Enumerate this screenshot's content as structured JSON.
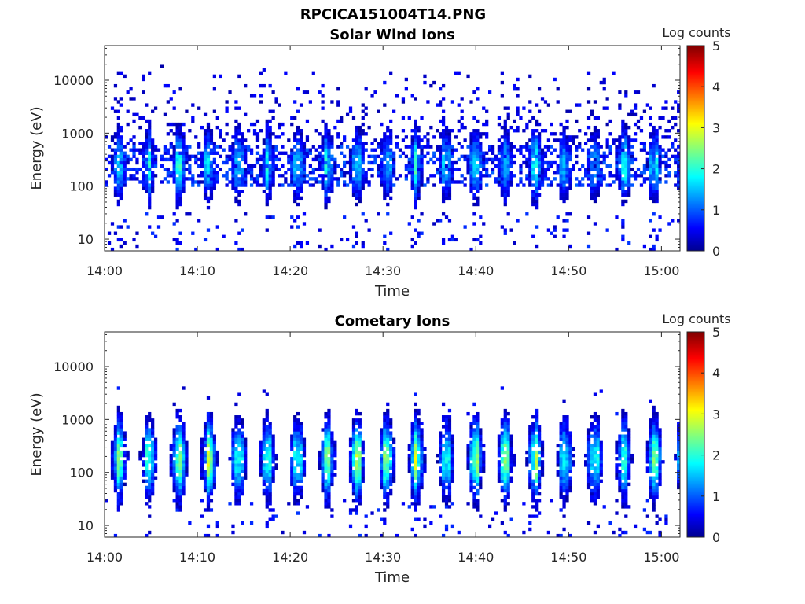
{
  "figure_title": "RPCICA151004T14.PNG",
  "chart_data": [
    {
      "type": "heatmap",
      "title": "Solar Wind Ions",
      "xlabel": "Time",
      "ylabel": "Energy (eV)",
      "x_range": [
        "14:00",
        "15:02"
      ],
      "x_ticks": [
        "14:00",
        "14:10",
        "14:20",
        "14:30",
        "14:40",
        "14:50",
        "15:00"
      ],
      "y_scale": "log",
      "y_range": [
        6,
        45000
      ],
      "y_ticks": [
        10,
        100,
        1000,
        10000
      ],
      "y_tick_labels": [
        "10",
        "100",
        "1000",
        "10000"
      ],
      "colorbar": {
        "label": "Log counts",
        "range": [
          0,
          5
        ],
        "ticks": [
          "0",
          "1",
          "2",
          "3",
          "4",
          "5"
        ],
        "colormap": "jet"
      },
      "band": {
        "center_ev": 250,
        "log_width": 0.45,
        "peak_log_counts": 1.9
      },
      "background_level": 0.8,
      "high_energy_noise": true,
      "pulse_period_min": 3.2
    },
    {
      "type": "heatmap",
      "title": "Cometary Ions",
      "xlabel": "Time",
      "ylabel": "Energy (eV)",
      "x_range": [
        "14:00",
        "15:02"
      ],
      "x_ticks": [
        "14:00",
        "14:10",
        "14:20",
        "14:30",
        "14:40",
        "14:50",
        "15:00"
      ],
      "y_scale": "log",
      "y_range": [
        6,
        45000
      ],
      "y_ticks": [
        10,
        100,
        1000,
        10000
      ],
      "y_tick_labels": [
        "10",
        "100",
        "1000",
        "10000"
      ],
      "colorbar": {
        "label": "Log counts",
        "range": [
          0,
          5
        ],
        "ticks": [
          "0",
          "1",
          "2",
          "3",
          "4",
          "5"
        ],
        "colormap": "jet"
      },
      "band": {
        "center_ev": 180,
        "log_width": 0.5,
        "peak_log_counts": 2.6
      },
      "background_level": 0.2,
      "high_energy_noise": false,
      "pulse_period_min": 3.2
    }
  ]
}
